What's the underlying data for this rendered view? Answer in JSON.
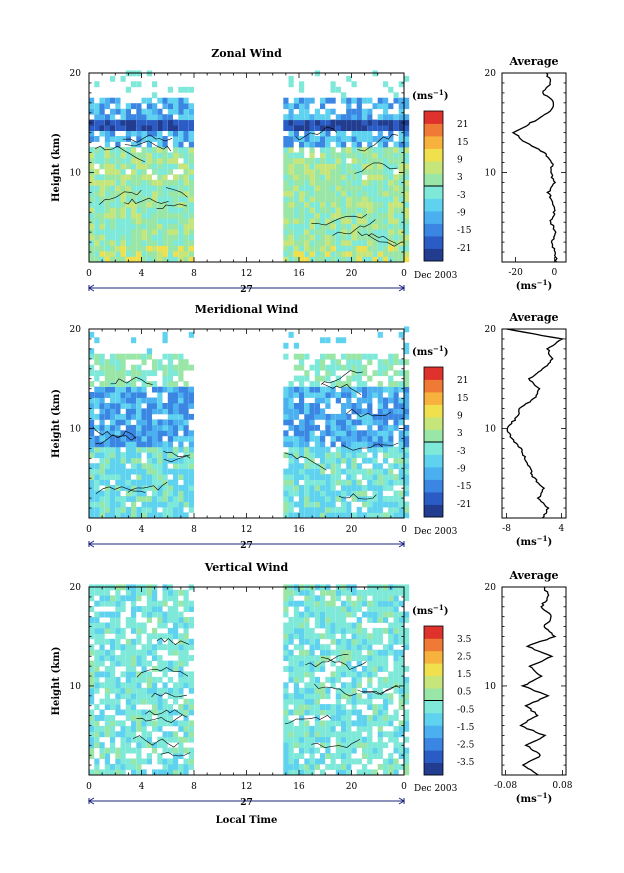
{
  "chart_data": [
    {
      "type": "heatmap",
      "title": "Zonal Wind",
      "ylabel": "Height (km)",
      "ylim": [
        1,
        20
      ],
      "yticks": [
        "10",
        "20"
      ],
      "xlim": [
        0,
        24
      ],
      "xticks": [
        "0",
        "4",
        "8",
        "12",
        "16",
        "20",
        "0"
      ],
      "date_label": "27",
      "month_label": "Dec 2003",
      "colorbar": {
        "unit": "(ms",
        "unit_exp": "−1",
        "unit_close": ")",
        "ticks": [
          "21",
          "15",
          "9",
          "3",
          "-3",
          "-9",
          "-15",
          "-21"
        ],
        "range": [
          -24,
          24
        ]
      },
      "data_gaps_hours": [
        [
          8,
          14.5
        ]
      ],
      "profile": {
        "title": "Average",
        "xticks": [
          "-20",
          "0"
        ],
        "xlim": [
          -27,
          6
        ],
        "xunit": "(ms",
        "xunit_exp": "−1",
        "xunit_close": ")",
        "yticks": [
          "10",
          "20"
        ],
        "height_km": [
          1,
          2,
          3,
          4,
          5,
          6,
          7,
          8,
          9,
          10,
          11,
          12,
          13,
          14,
          15,
          16,
          17,
          18,
          19,
          20
        ],
        "values": [
          1,
          0,
          -1,
          1,
          -2,
          0,
          -1,
          -3,
          0,
          -2,
          -1,
          -5,
          -15,
          -21,
          -12,
          -3,
          0,
          -6,
          -2,
          -4
        ]
      }
    },
    {
      "type": "heatmap",
      "title": "Meridional Wind",
      "ylabel": "Height (km)",
      "ylim": [
        1,
        20
      ],
      "yticks": [
        "10",
        "20"
      ],
      "xlim": [
        0,
        24
      ],
      "xticks": [
        "0",
        "4",
        "8",
        "12",
        "16",
        "20",
        "0"
      ],
      "date_label": "27",
      "month_label": "Dec 2003",
      "colorbar": {
        "unit": "(ms",
        "unit_exp": "−1",
        "unit_close": ")",
        "ticks": [
          "21",
          "15",
          "9",
          "3",
          "-3",
          "-9",
          "-15",
          "-21"
        ],
        "range": [
          -24,
          24
        ]
      },
      "data_gaps_hours": [
        [
          8,
          14.5
        ]
      ],
      "profile": {
        "title": "Average",
        "xticks": [
          "-8",
          "4"
        ],
        "xlim": [
          -9,
          5
        ],
        "xunit": "(ms",
        "xunit_exp": "−1",
        "xunit_close": ")",
        "yticks": [
          "10",
          "20"
        ],
        "height_km": [
          1,
          2,
          3,
          4,
          5,
          6,
          7,
          8,
          9,
          10,
          11,
          12,
          13,
          14,
          15,
          16,
          17,
          18,
          19,
          20
        ],
        "values": [
          0,
          1,
          -1,
          0,
          -2,
          -3,
          -4,
          -5,
          -7,
          -8,
          -6,
          -5,
          -2,
          -1,
          -3,
          0,
          2,
          1,
          4,
          -8
        ]
      }
    },
    {
      "type": "heatmap",
      "title": "Vertical Wind",
      "ylabel": "Height (km)",
      "xlabel": "Local Time",
      "ylim": [
        1,
        20
      ],
      "yticks": [
        "10",
        "20"
      ],
      "xlim": [
        0,
        24
      ],
      "xticks": [
        "0",
        "4",
        "8",
        "12",
        "16",
        "20",
        "0"
      ],
      "date_label": "27",
      "month_label": "Dec 2003",
      "colorbar": {
        "unit": "(ms",
        "unit_exp": "−1",
        "unit_close": ")",
        "ticks": [
          "3.5",
          "2.5",
          "1.5",
          "0.5",
          "-0.5",
          "-1.5",
          "-2.5",
          "-3.5"
        ],
        "range": [
          -4,
          4
        ]
      },
      "data_gaps_hours": [
        [
          8,
          14.5
        ]
      ],
      "profile": {
        "title": "Average",
        "xticks": [
          "-0.08",
          "0.08"
        ],
        "xlim": [
          -0.09,
          0.09
        ],
        "xunit": "(ms",
        "xunit_exp": "−1",
        "xunit_close": ")",
        "yticks": [
          "10",
          "20"
        ],
        "height_km": [
          1,
          2,
          3,
          4,
          5,
          6,
          7,
          8,
          9,
          10,
          11,
          12,
          13,
          14,
          15,
          16,
          17,
          18,
          19,
          20
        ],
        "values": [
          0.01,
          -0.03,
          0.02,
          -0.02,
          0.03,
          -0.04,
          0.01,
          -0.02,
          0.04,
          -0.03,
          0.02,
          -0.01,
          0.05,
          -0.02,
          0.06,
          0.03,
          0.05,
          0.02,
          0.04,
          0.03
        ]
      }
    }
  ]
}
